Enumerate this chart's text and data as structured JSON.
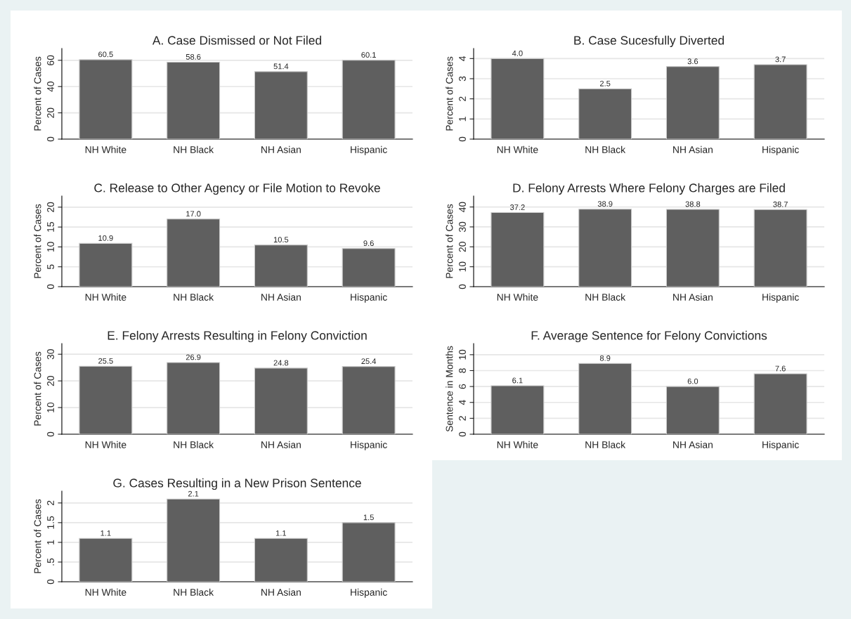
{
  "chart_data": [
    {
      "type": "bar",
      "title": "A. Case Dismissed or Not Filed",
      "ylabel": "Percent of Cases",
      "categories": [
        "NH White",
        "NH Black",
        "NH Asian",
        "Hispanic"
      ],
      "values": [
        60.5,
        58.6,
        51.4,
        60.1
      ],
      "value_labels": [
        "60.5",
        "58.6",
        "51.4",
        "60.1"
      ],
      "color": "#5f5f5f",
      "ylim": [
        0,
        69
      ],
      "yticks": [
        0,
        20,
        40,
        60
      ],
      "grid": "y"
    },
    {
      "type": "bar",
      "title": "B. Case Sucesfully Diverted",
      "ylabel": "Percent of Cases",
      "categories": [
        "NH White",
        "NH Black",
        "NH Asian",
        "Hispanic"
      ],
      "values": [
        4.0,
        2.5,
        3.6,
        3.7
      ],
      "value_labels": [
        "4.0",
        "2.5",
        "3.6",
        "3.7"
      ],
      "color": "#5f5f5f",
      "ylim": [
        0,
        4.5
      ],
      "yticks": [
        0,
        1,
        2,
        3,
        4
      ],
      "grid": "y"
    },
    {
      "type": "bar",
      "title": "C. Release to Other Agency or File Motion to Revoke",
      "ylabel": "Percent of Cases",
      "categories": [
        "NH White",
        "NH Black",
        "NH Asian",
        "Hispanic"
      ],
      "values": [
        10.9,
        17.0,
        10.5,
        9.6
      ],
      "value_labels": [
        "10.9",
        "17.0",
        "10.5",
        "9.6"
      ],
      "color": "#5f5f5f",
      "ylim": [
        0,
        22.8
      ],
      "yticks": [
        0,
        5,
        10,
        15,
        20
      ],
      "grid": "y"
    },
    {
      "type": "bar",
      "title": "D. Felony Arrests Where Felony Charges are Filed",
      "ylabel": "Percent of Cases",
      "categories": [
        "NH White",
        "NH Black",
        "NH Asian",
        "Hispanic"
      ],
      "values": [
        37.2,
        38.9,
        38.8,
        38.7
      ],
      "value_labels": [
        "37.2",
        "38.9",
        "38.8",
        "38.7"
      ],
      "color": "#5f5f5f",
      "ylim": [
        0,
        45.5
      ],
      "yticks": [
        0,
        10,
        20,
        30,
        40
      ],
      "grid": "y"
    },
    {
      "type": "bar",
      "title": "E. Felony Arrests Resulting in Felony Conviction",
      "ylabel": "Percent of Cases",
      "categories": [
        "NH White",
        "NH Black",
        "NH Asian",
        "Hispanic"
      ],
      "values": [
        25.5,
        26.9,
        24.8,
        25.4
      ],
      "value_labels": [
        "25.5",
        "26.9",
        "24.8",
        "25.4"
      ],
      "color": "#5f5f5f",
      "ylim": [
        0,
        34
      ],
      "yticks": [
        0,
        10,
        20,
        30
      ],
      "grid": "y"
    },
    {
      "type": "bar",
      "title": "F. Average Sentence for Felony Convictions",
      "ylabel": "Sentence in Months",
      "categories": [
        "NH White",
        "NH Black",
        "NH Asian",
        "Hispanic"
      ],
      "values": [
        6.1,
        8.9,
        6.0,
        7.6
      ],
      "value_labels": [
        "6.1",
        "8.9",
        "6.0",
        "7.6"
      ],
      "color": "#5f5f5f",
      "ylim": [
        0,
        11.4
      ],
      "yticks": [
        0,
        2,
        4,
        6,
        8,
        10
      ],
      "grid": "y"
    },
    {
      "type": "bar",
      "title": "G. Cases Resulting in a New Prison Sentence",
      "ylabel": "Percent of Cases",
      "categories": [
        "NH White",
        "NH Black",
        "NH Asian",
        "Hispanic"
      ],
      "values": [
        1.1,
        2.1,
        1.1,
        1.5
      ],
      "value_labels": [
        "1.1",
        "2.1",
        "1.1",
        "1.5"
      ],
      "color": "#5f5f5f",
      "ylim": [
        0,
        2.3
      ],
      "yticks": [
        0,
        {
          "value": 0.5,
          "label": ".5"
        },
        1,
        1.5,
        2
      ],
      "grid": "y"
    }
  ]
}
